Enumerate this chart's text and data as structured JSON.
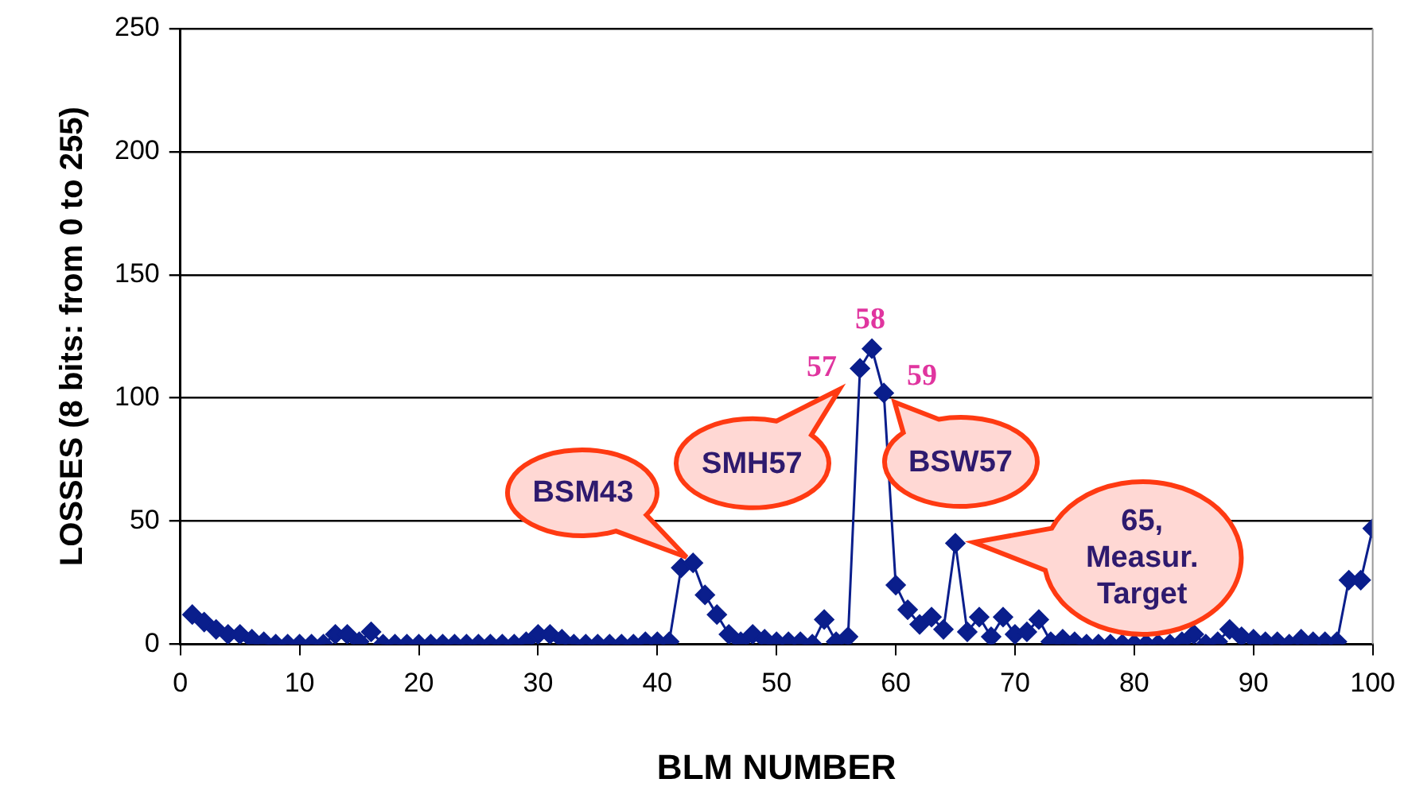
{
  "chart_data": {
    "type": "line",
    "xlabel": "BLM NUMBER",
    "ylabel": "LOSSES (8 bits: from 0 to 255)",
    "x": [
      1,
      2,
      3,
      4,
      5,
      6,
      7,
      8,
      9,
      10,
      11,
      12,
      13,
      14,
      15,
      16,
      17,
      18,
      19,
      20,
      21,
      22,
      23,
      24,
      25,
      26,
      27,
      28,
      29,
      30,
      31,
      32,
      33,
      34,
      35,
      36,
      37,
      38,
      39,
      40,
      41,
      42,
      43,
      44,
      45,
      46,
      47,
      48,
      49,
      50,
      51,
      52,
      53,
      54,
      55,
      56,
      57,
      58,
      59,
      60,
      61,
      62,
      63,
      64,
      65,
      66,
      67,
      68,
      69,
      70,
      71,
      72,
      73,
      74,
      75,
      76,
      77,
      78,
      79,
      80,
      81,
      82,
      83,
      84,
      85,
      86,
      87,
      88,
      89,
      90,
      91,
      92,
      93,
      94,
      95,
      96,
      97,
      98,
      99,
      100
    ],
    "series": [
      {
        "color": "#0a1e8c",
        "values": [
          12,
          9,
          6,
          4,
          4,
          2,
          1,
          0,
          0,
          0,
          0,
          0,
          4,
          4,
          1,
          5,
          0,
          0,
          0,
          0,
          0,
          0,
          0,
          0,
          0,
          0,
          0,
          0,
          1,
          4,
          4,
          2,
          0,
          0,
          0,
          0,
          0,
          0,
          1,
          1,
          1,
          31,
          33,
          20,
          12,
          4,
          1,
          4,
          2,
          1,
          1,
          1,
          0,
          10,
          1,
          3,
          112,
          120,
          102,
          24,
          14,
          8,
          11,
          6,
          41,
          5,
          11,
          3,
          11,
          4,
          5,
          10,
          1,
          2,
          1,
          0,
          0,
          0,
          0,
          0,
          0,
          0,
          0,
          1,
          4,
          0,
          1,
          6,
          3,
          2,
          1,
          1,
          0,
          2,
          1,
          1,
          1,
          26,
          26,
          47
        ]
      }
    ],
    "xlim": [
      0,
      100
    ],
    "xticks": [
      0,
      10,
      20,
      30,
      40,
      50,
      60,
      70,
      80,
      90,
      100
    ],
    "ylim": [
      0,
      250
    ],
    "yticks": [
      0,
      50,
      100,
      150,
      200,
      250
    ],
    "grid": "y",
    "legend": false,
    "marker": "diamond",
    "line_style": "solid",
    "annotations": [
      "BSM43",
      "SMH57",
      "BSW57",
      "65,\nMeasur.\nTarget",
      {
        "text": "57",
        "x": 57,
        "y": 112
      },
      {
        "text": "58",
        "x": 58,
        "y": 120
      },
      {
        "text": "59",
        "x": 59,
        "y": 102
      }
    ]
  }
}
